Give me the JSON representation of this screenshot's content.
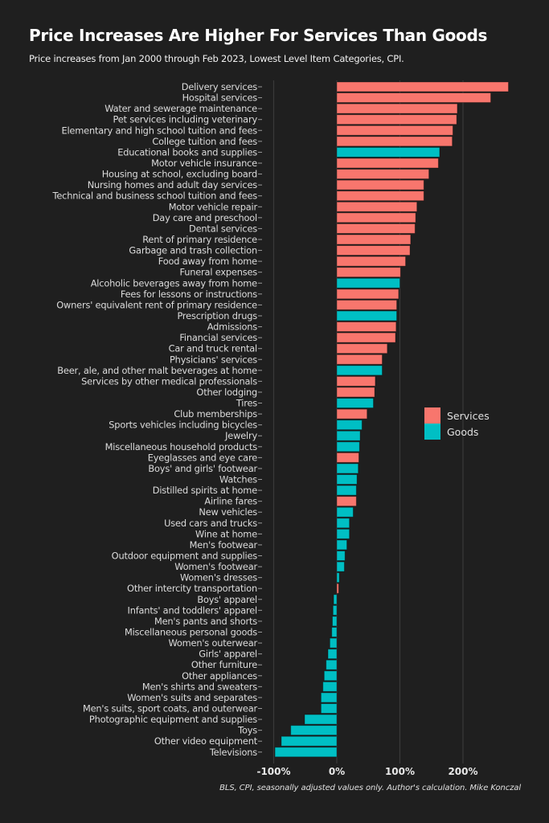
{
  "header": {
    "title": "Price Increases Are Higher For Services Than Goods",
    "subtitle": "Price increases from Jan 2000 through Feb 2023, Lowest Level Item Categories, CPI."
  },
  "footer": {
    "caption": "BLS, CPI, seasonally adjusted values only. Author's calculation. Mike Konczal"
  },
  "colors": {
    "services": "#f8766d",
    "goods": "#00bfc4",
    "background": "#1f1f1f",
    "grid": "#3a3a3a"
  },
  "legend": {
    "items": [
      {
        "label": "Services",
        "key": "services"
      },
      {
        "label": "Goods",
        "key": "goods"
      }
    ]
  },
  "chart_data": {
    "type": "bar",
    "orientation": "horizontal",
    "title": "Price Increases Are Higher For Services Than Goods",
    "subtitle": "Price increases from Jan 2000 through Feb 2023, Lowest Level Item Categories, CPI.",
    "xlabel": "",
    "ylabel": "",
    "xlim": [
      -100,
      285
    ],
    "x_ticks": [
      -100,
      0,
      100,
      200
    ],
    "x_tick_labels": [
      "-100%",
      "0%",
      "100%",
      "200%"
    ],
    "grid": "vertical",
    "legend_position": "right-middle",
    "categories": [
      "Delivery services",
      "Hospital services",
      "Water and sewerage maintenance",
      "Pet services including veterinary",
      "Elementary and high school tuition and fees",
      "College tuition and fees",
      "Educational books and supplies",
      "Motor vehicle insurance",
      "Housing at school, excluding board",
      "Nursing homes and adult day services",
      "Technical and business school tuition and fees",
      "Motor vehicle repair",
      "Day care and preschool",
      "Dental services",
      "Rent of primary residence",
      "Garbage and trash collection",
      "Food away from home",
      "Funeral expenses",
      "Alcoholic beverages away from home",
      "Fees for lessons or instructions",
      "Owners' equivalent rent of primary residence",
      "Prescription drugs",
      "Admissions",
      "Financial services",
      "Car and truck rental",
      "Physicians' services",
      "Beer, ale, and other malt beverages at home",
      "Services by other medical professionals",
      "Other lodging",
      "Tires",
      "Club memberships",
      "Sports vehicles including bicycles",
      "Jewelry",
      "Miscellaneous household products",
      "Eyeglasses and eye care",
      "Boys' and girls' footwear",
      "Watches",
      "Distilled spirits at home",
      "Airline fares",
      "New vehicles",
      "Used cars and trucks",
      "Wine at home",
      "Men's footwear",
      "Outdoor equipment and supplies",
      "Women's footwear",
      "Women's dresses",
      "Other intercity transportation",
      "Boys' apparel",
      "Infants' and toddlers' apparel",
      "Men's pants and shorts",
      "Miscellaneous personal goods",
      "Women's outerwear",
      "Girls' apparel",
      "Other furniture",
      "Other appliances",
      "Men's shirts and sweaters",
      "Women's suits and separates",
      "Men's suits, sport coats, and outerwear",
      "Photographic equipment and supplies",
      "Toys",
      "Other video equipment",
      "Televisions"
    ],
    "values": [
      272,
      244,
      191,
      190,
      184,
      183,
      163,
      161,
      146,
      138,
      138,
      127,
      125,
      124,
      117,
      116,
      109,
      101,
      100,
      98,
      95,
      95,
      94,
      93,
      80,
      72,
      72,
      61,
      60,
      58,
      48,
      40,
      37,
      36,
      35,
      34,
      32,
      31,
      31,
      26,
      20,
      20,
      16,
      13,
      12,
      4,
      3,
      -5,
      -6,
      -7,
      -8,
      -11,
      -14,
      -17,
      -20,
      -22,
      -25,
      -25,
      -51,
      -73,
      -88,
      -98
    ],
    "groups": [
      "services",
      "services",
      "services",
      "services",
      "services",
      "services",
      "goods",
      "services",
      "services",
      "services",
      "services",
      "services",
      "services",
      "services",
      "services",
      "services",
      "services",
      "services",
      "goods",
      "services",
      "services",
      "goods",
      "services",
      "services",
      "services",
      "services",
      "goods",
      "services",
      "services",
      "goods",
      "services",
      "goods",
      "goods",
      "goods",
      "services",
      "goods",
      "goods",
      "goods",
      "services",
      "goods",
      "goods",
      "goods",
      "goods",
      "goods",
      "goods",
      "goods",
      "services",
      "goods",
      "goods",
      "goods",
      "goods",
      "goods",
      "goods",
      "goods",
      "goods",
      "goods",
      "goods",
      "goods",
      "goods",
      "goods",
      "goods",
      "goods"
    ],
    "series": [
      {
        "name": "Services",
        "color": "#f8766d"
      },
      {
        "name": "Goods",
        "color": "#00bfc4"
      }
    ],
    "units": "percent price increase"
  }
}
